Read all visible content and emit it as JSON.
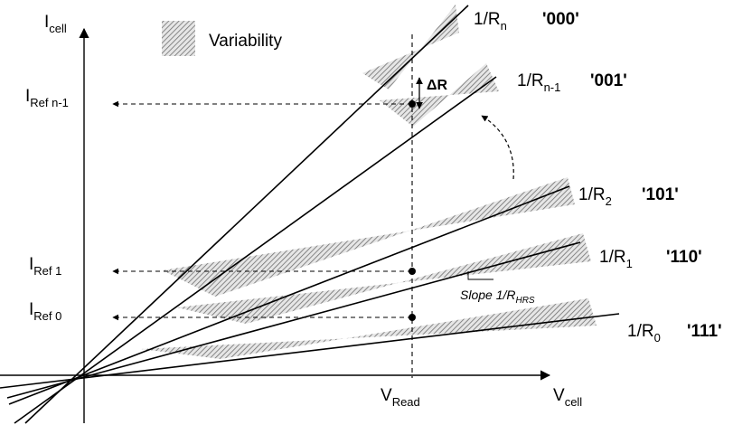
{
  "axes": {
    "y_label": "I",
    "y_label_sub": "cell",
    "x_label": "V",
    "x_label_sub": "cell",
    "v_read_label": "V",
    "v_read_sub": "Read"
  },
  "legend": {
    "label": "Variability"
  },
  "delta_label": "ΔR",
  "slope_annotation": {
    "text": "Slope 1/R",
    "sub": "HRS"
  },
  "references": [
    {
      "id": "ref-n-1",
      "label": "I",
      "sub": "Ref n-1"
    },
    {
      "id": "ref-1",
      "label": "I",
      "sub": "Ref 1"
    },
    {
      "id": "ref-0",
      "label": "I",
      "sub": "Ref 0"
    }
  ],
  "lines": [
    {
      "id": "rn",
      "label": "1/R",
      "sub": "n",
      "code": "'000'"
    },
    {
      "id": "rn-1",
      "label": "1/R",
      "sub": "n-1",
      "code": "'001'"
    },
    {
      "id": "r2",
      "label": "1/R",
      "sub": "2",
      "code": "'101'"
    },
    {
      "id": "r1",
      "label": "1/R",
      "sub": "1",
      "code": "'110'"
    },
    {
      "id": "r0",
      "label": "1/R",
      "sub": "0",
      "code": "'111'"
    }
  ],
  "colors": {
    "line": "#000000",
    "band": "#8a8a8a",
    "background": "#ffffff"
  }
}
